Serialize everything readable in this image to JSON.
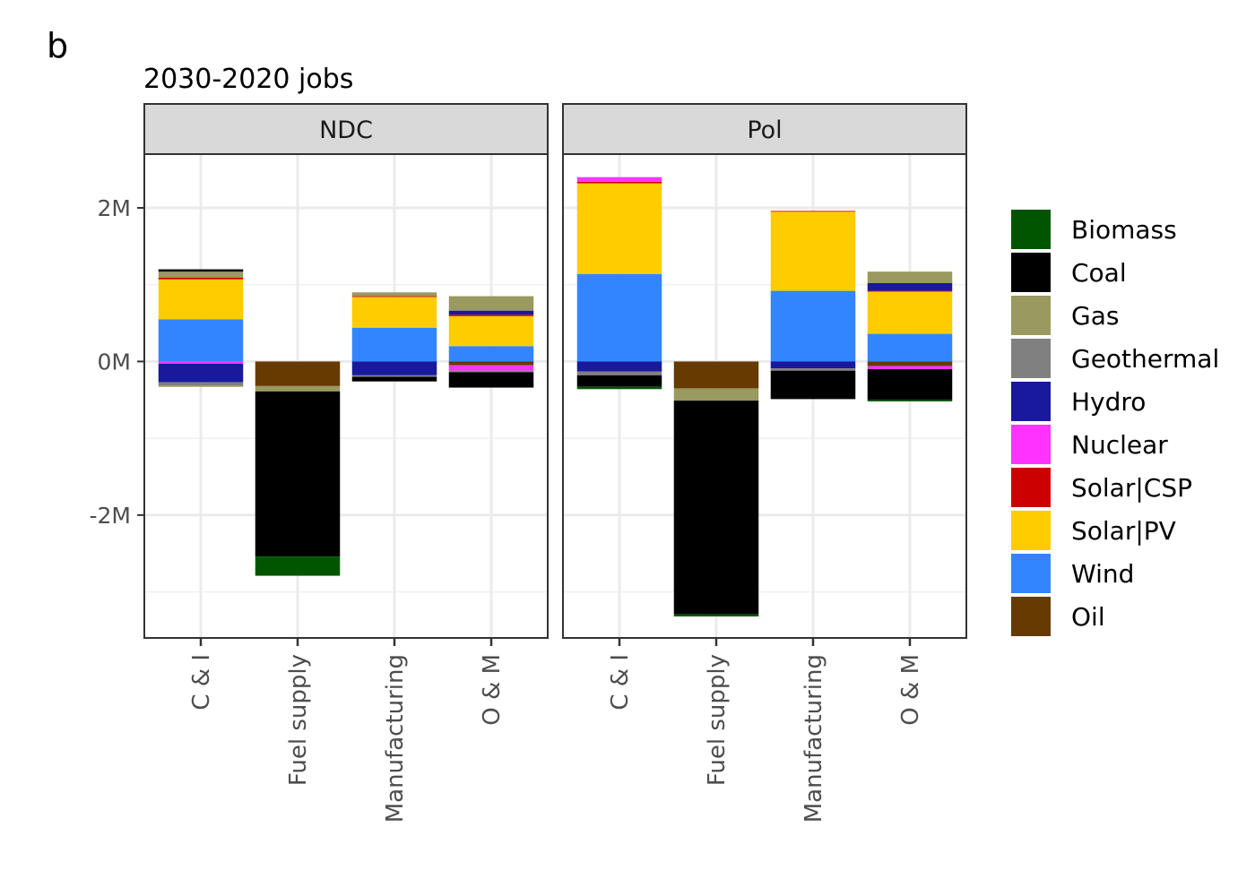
{
  "panel_letter": "b",
  "chart_data": {
    "type": "bar",
    "stacked": true,
    "title": "2030-2020 jobs",
    "xlabel": "",
    "ylabel": "",
    "ylim": [
      -3.6,
      2.7
    ],
    "y_ticks": [
      {
        "value": 2,
        "label": "2M"
      },
      {
        "value": 0,
        "label": "0M"
      },
      {
        "value": -2,
        "label": "-2M"
      }
    ],
    "grid": true,
    "legend_position": "right",
    "categories": [
      "C & I",
      "Fuel supply",
      "Manufacturing",
      "O & M"
    ],
    "facets": [
      {
        "label": "NDC",
        "bars": [
          {
            "category": "C & I",
            "positive": [
              {
                "tech": "Wind",
                "value": 0.55
              },
              {
                "tech": "Solar|PV",
                "value": 0.52
              },
              {
                "tech": "Solar|CSP",
                "value": 0.02
              },
              {
                "tech": "Gas",
                "value": 0.08
              },
              {
                "tech": "Coal",
                "value": 0.03
              }
            ],
            "negative": [
              {
                "tech": "Nuclear",
                "value": -0.03
              },
              {
                "tech": "Hydro",
                "value": -0.24
              },
              {
                "tech": "Geothermal",
                "value": -0.04
              },
              {
                "tech": "Gas",
                "value": -0.02
              }
            ]
          },
          {
            "category": "Fuel supply",
            "positive": [],
            "negative": [
              {
                "tech": "Oil",
                "value": -0.32
              },
              {
                "tech": "Gas",
                "value": -0.07
              },
              {
                "tech": "Coal",
                "value": -2.15
              },
              {
                "tech": "Biomass",
                "value": -0.25
              }
            ]
          },
          {
            "category": "Manufacturing",
            "positive": [
              {
                "tech": "Wind",
                "value": 0.44
              },
              {
                "tech": "Solar|PV",
                "value": 0.4
              },
              {
                "tech": "Solar|CSP",
                "value": 0.01
              },
              {
                "tech": "Gas",
                "value": 0.05
              }
            ],
            "negative": [
              {
                "tech": "Hydro",
                "value": -0.18
              },
              {
                "tech": "Geothermal",
                "value": -0.02
              },
              {
                "tech": "Coal",
                "value": -0.06
              }
            ]
          },
          {
            "category": "O & M",
            "positive": [
              {
                "tech": "Wind",
                "value": 0.2
              },
              {
                "tech": "Solar|PV",
                "value": 0.39
              },
              {
                "tech": "Solar|CSP",
                "value": 0.02
              },
              {
                "tech": "Hydro",
                "value": 0.05
              },
              {
                "tech": "Geothermal",
                "value": 0.01
              },
              {
                "tech": "Gas",
                "value": 0.18
              }
            ],
            "negative": [
              {
                "tech": "Oil",
                "value": -0.05
              },
              {
                "tech": "Nuclear",
                "value": -0.07
              },
              {
                "tech": "Geothermal",
                "value": -0.02
              },
              {
                "tech": "Coal",
                "value": -0.2
              }
            ]
          }
        ]
      },
      {
        "label": "Pol",
        "bars": [
          {
            "category": "C & I",
            "positive": [
              {
                "tech": "Wind",
                "value": 1.14
              },
              {
                "tech": "Solar|PV",
                "value": 1.18
              },
              {
                "tech": "Solar|CSP",
                "value": 0.02
              },
              {
                "tech": "Nuclear",
                "value": 0.06
              }
            ],
            "negative": [
              {
                "tech": "Hydro",
                "value": -0.13
              },
              {
                "tech": "Geothermal",
                "value": -0.05
              },
              {
                "tech": "Coal",
                "value": -0.15
              },
              {
                "tech": "Biomass",
                "value": -0.03
              }
            ]
          },
          {
            "category": "Fuel supply",
            "positive": [],
            "negative": [
              {
                "tech": "Oil",
                "value": -0.35
              },
              {
                "tech": "Gas",
                "value": -0.16
              },
              {
                "tech": "Coal",
                "value": -2.78
              },
              {
                "tech": "Biomass",
                "value": -0.03
              }
            ]
          },
          {
            "category": "Manufacturing",
            "positive": [
              {
                "tech": "Wind",
                "value": 0.92
              },
              {
                "tech": "Solar|PV",
                "value": 1.03
              },
              {
                "tech": "Solar|CSP",
                "value": 0.01
              }
            ],
            "negative": [
              {
                "tech": "Hydro",
                "value": -0.09
              },
              {
                "tech": "Geothermal",
                "value": -0.03
              },
              {
                "tech": "Coal",
                "value": -0.37
              }
            ]
          },
          {
            "category": "O & M",
            "positive": [
              {
                "tech": "Wind",
                "value": 0.36
              },
              {
                "tech": "Solar|PV",
                "value": 0.55
              },
              {
                "tech": "Solar|CSP",
                "value": 0.01
              },
              {
                "tech": "Hydro",
                "value": 0.1
              },
              {
                "tech": "Gas",
                "value": 0.15
              }
            ],
            "negative": [
              {
                "tech": "Oil",
                "value": -0.06
              },
              {
                "tech": "Nuclear",
                "value": -0.04
              },
              {
                "tech": "Coal",
                "value": -0.4
              },
              {
                "tech": "Biomass",
                "value": -0.02
              }
            ]
          }
        ]
      }
    ],
    "legend": [
      {
        "name": "Biomass",
        "color": "#015501"
      },
      {
        "name": "Coal",
        "color": "#000000"
      },
      {
        "name": "Gas",
        "color": "#999960"
      },
      {
        "name": "Geothermal",
        "color": "#808080"
      },
      {
        "name": "Hydro",
        "color": "#19199d"
      },
      {
        "name": "Nuclear",
        "color": "#ff33ff"
      },
      {
        "name": "Solar|CSP",
        "color": "#cc0000"
      },
      {
        "name": "Solar|PV",
        "color": "#ffcc00"
      },
      {
        "name": "Wind",
        "color": "#3385ff"
      },
      {
        "name": "Oil",
        "color": "#663a00"
      }
    ]
  }
}
